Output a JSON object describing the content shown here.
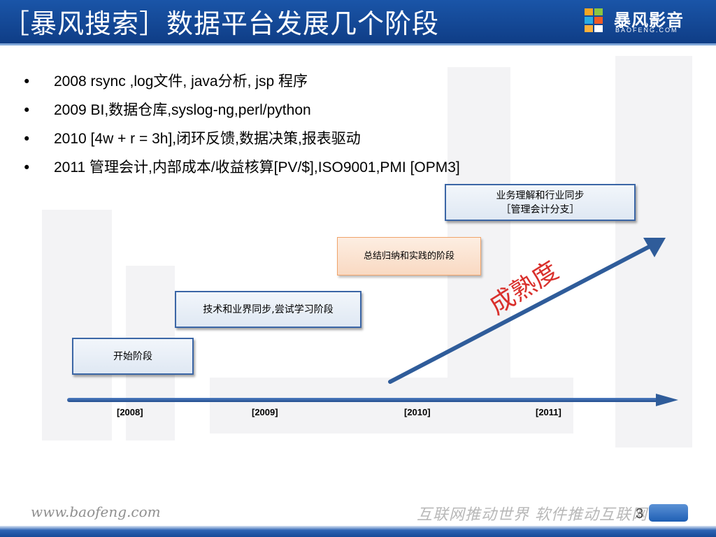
{
  "header": {
    "title": "［暴风搜索］数据平台发展几个阶段",
    "logo_text": "暴风影音",
    "logo_subtext": "BAOFENG.COM"
  },
  "bullets": [
    "2008  rsync ,log文件,  java分析, jsp 程序",
    "2009 BI,数据仓库,syslog-ng,perl/python",
    "2010 [4w + r = 3h],闭环反馈,数据决策,报表驱动",
    "2011 管理会计,内部成本/收益核算[PV/$],ISO9001,PMI [OPM3]"
  ],
  "bullet_symbol": "•",
  "stages": {
    "stage1": "开始阶段",
    "stage2": "技术和业界同步,尝试学习阶段",
    "stage3": "总结归纳和实践的阶段",
    "stage4_line1": "业务理解和行业同步",
    "stage4_line2": "［管理会计分支］"
  },
  "maturity_label": "成熟度",
  "timeline": {
    "years": [
      "[2008]",
      "[2009]",
      "[2010]",
      "[2011]"
    ]
  },
  "footer": {
    "url": "www.baofeng.com",
    "slogan": "互联网推动世界 软件推动互联网",
    "page_number": "3"
  },
  "colors": {
    "header_blue": "#0f3d86",
    "arrow_blue": "#2f5c9a",
    "stage_border_blue": "#3b66a6",
    "stage_orange_border": "#f0a46b",
    "maturity_red": "#d9302c"
  }
}
